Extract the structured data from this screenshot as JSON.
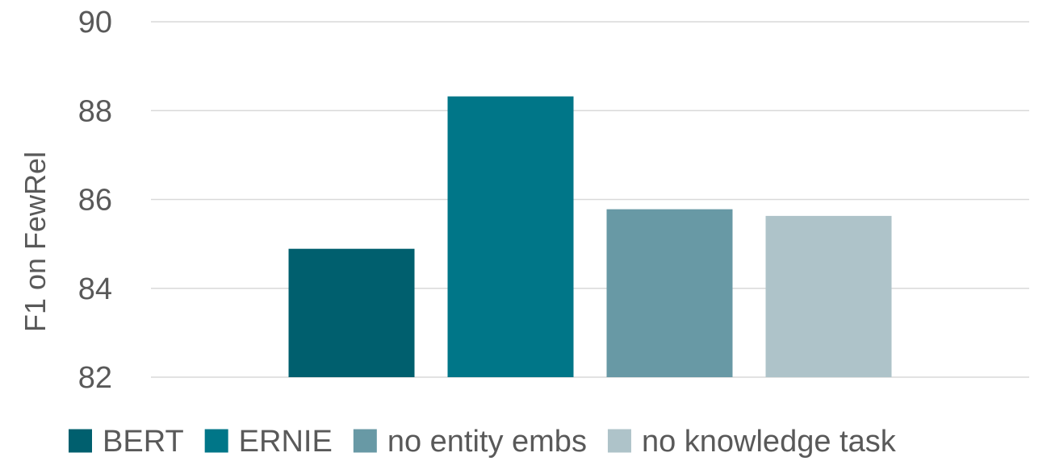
{
  "chart_data": {
    "type": "bar",
    "title": "",
    "xlabel": "",
    "ylabel": "F1 on FewRel",
    "ylim": [
      82,
      90
    ],
    "yticks": [
      82,
      84,
      86,
      88,
      90
    ],
    "grid": true,
    "legend_position": "bottom",
    "categories": [
      ""
    ],
    "series": [
      {
        "name": "BERT",
        "values": [
          84.89
        ],
        "color": "#005f6e"
      },
      {
        "name": "ERNIE",
        "values": [
          88.32
        ],
        "color": "#007688"
      },
      {
        "name": "no entity embs",
        "values": [
          85.78
        ],
        "color": "#6899a5"
      },
      {
        "name": "no knowledge task",
        "values": [
          85.63
        ],
        "color": "#aec3c9"
      }
    ]
  }
}
